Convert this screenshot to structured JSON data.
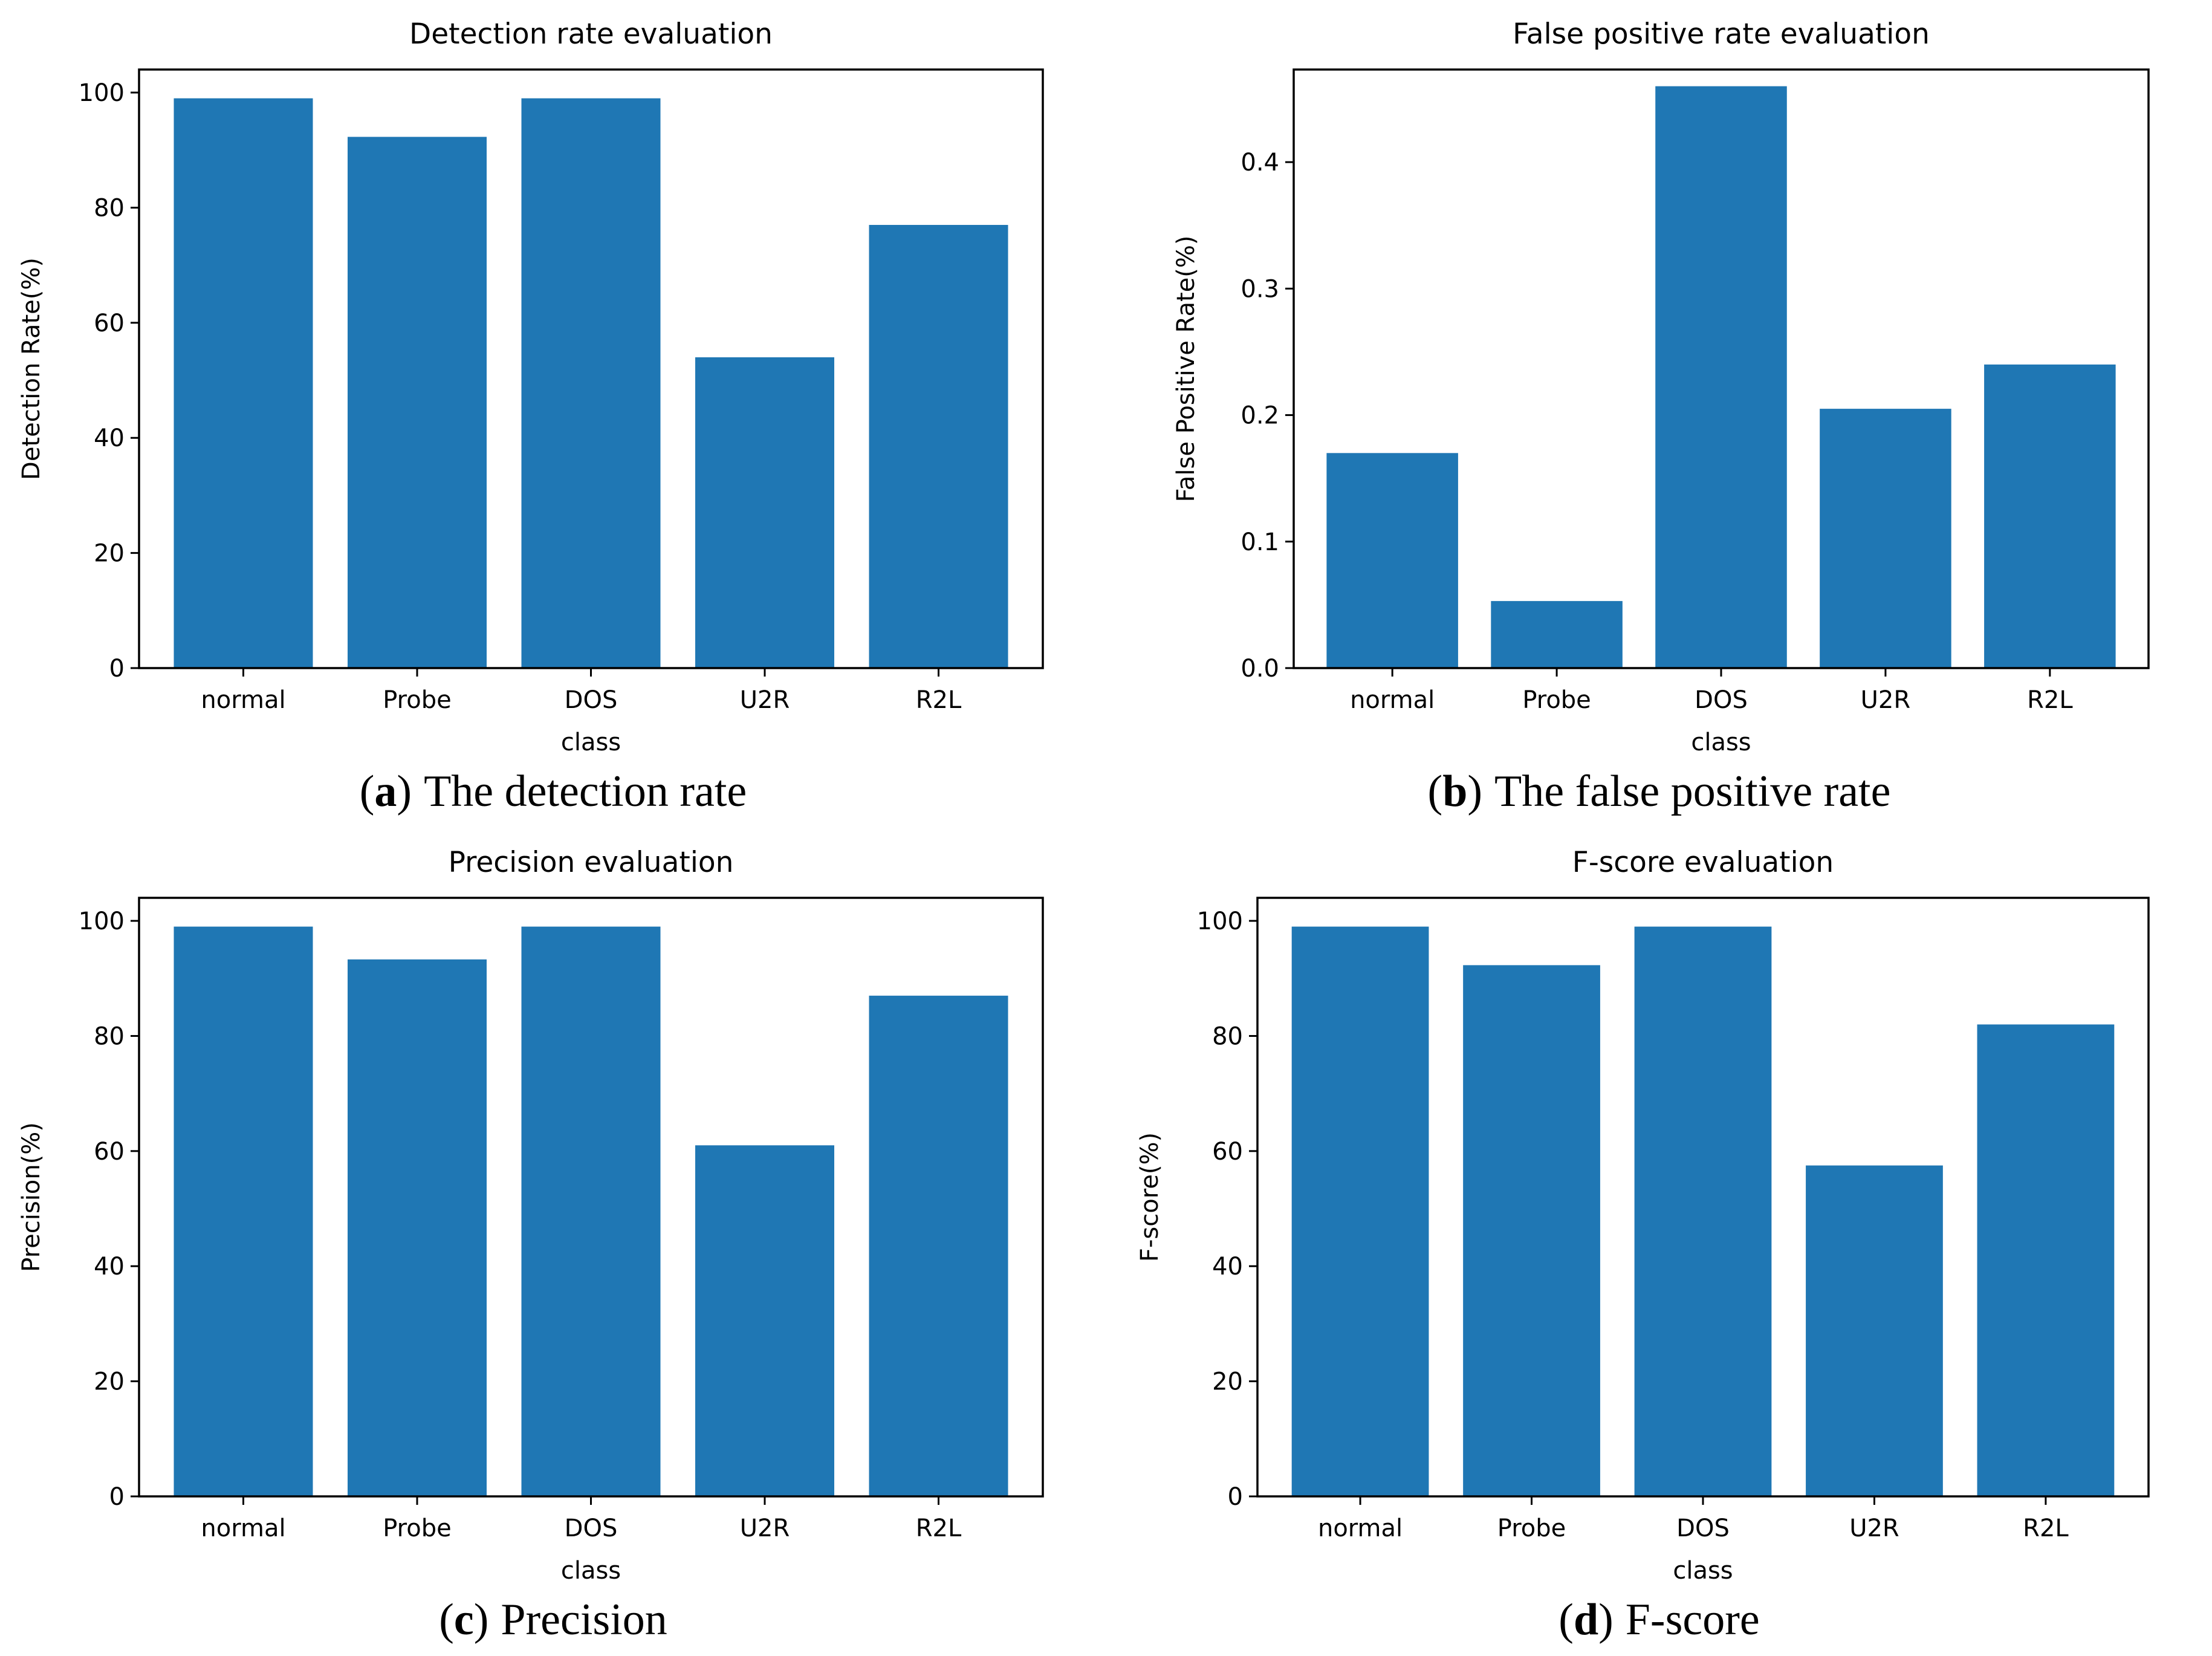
{
  "page": {
    "background": "#ffffff",
    "figure_name": "evaluation-metrics-figure"
  },
  "charts": [
    {
      "id": "a",
      "caption": {
        "open": "(",
        "letter": "a",
        "close": ")",
        "text": "The detection rate"
      },
      "chart_data": {
        "type": "bar",
        "title": "Detection rate evaluation",
        "xlabel": "class",
        "ylabel": "Detection Rate(%)",
        "categories": [
          "normal",
          "Probe",
          "DOS",
          "U2R",
          "R2L"
        ],
        "values": [
          99,
          92.3,
          99,
          54,
          77
        ],
        "yticks": [
          0,
          20,
          40,
          60,
          80,
          100
        ],
        "ytick_labels": [
          "0",
          "20",
          "40",
          "60",
          "80",
          "100"
        ],
        "ylim": [
          0,
          104
        ],
        "bar_color": "#1f77b4",
        "grid": "off",
        "legend": "none"
      }
    },
    {
      "id": "b",
      "caption": {
        "open": "(",
        "letter": "b",
        "close": ")",
        "text": "The false positive rate"
      },
      "chart_data": {
        "type": "bar",
        "title": "False positive rate evaluation",
        "xlabel": "class",
        "ylabel": "False Positive Rate(%)",
        "categories": [
          "normal",
          "Probe",
          "DOS",
          "U2R",
          "R2L"
        ],
        "values": [
          0.17,
          0.053,
          0.46,
          0.205,
          0.24
        ],
        "yticks": [
          0,
          0.1,
          0.2,
          0.3,
          0.4
        ],
        "ytick_labels": [
          "0.0",
          "0.1",
          "0.2",
          "0.3",
          "0.4"
        ],
        "ylim": [
          0,
          0.4732
        ],
        "bar_color": "#1f77b4",
        "grid": "off",
        "legend": "none"
      }
    },
    {
      "id": "c",
      "caption": {
        "open": "(",
        "letter": "c",
        "close": ")",
        "text": "Precision"
      },
      "chart_data": {
        "type": "bar",
        "title": "Precision evaluation",
        "xlabel": "class",
        "ylabel": "Precision(%)",
        "categories": [
          "normal",
          "Probe",
          "DOS",
          "U2R",
          "R2L"
        ],
        "values": [
          99,
          93.3,
          99,
          61,
          87
        ],
        "yticks": [
          0,
          20,
          40,
          60,
          80,
          100
        ],
        "ytick_labels": [
          "0",
          "20",
          "40",
          "60",
          "80",
          "100"
        ],
        "ylim": [
          0,
          104
        ],
        "bar_color": "#1f77b4",
        "grid": "off",
        "legend": "none"
      }
    },
    {
      "id": "d",
      "caption": {
        "open": "(",
        "letter": "d",
        "close": ")",
        "text": "F-score"
      },
      "chart_data": {
        "type": "bar",
        "title": "F-score evaluation",
        "xlabel": "class",
        "ylabel": "F-score(%)",
        "categories": [
          "normal",
          "Probe",
          "DOS",
          "U2R",
          "R2L"
        ],
        "values": [
          99,
          92.3,
          99,
          57.5,
          82
        ],
        "yticks": [
          0,
          20,
          40,
          60,
          80,
          100
        ],
        "ytick_labels": [
          "0",
          "20",
          "40",
          "60",
          "80",
          "100"
        ],
        "ylim": [
          0,
          104
        ],
        "bar_color": "#1f77b4",
        "grid": "off",
        "legend": "none"
      }
    }
  ]
}
